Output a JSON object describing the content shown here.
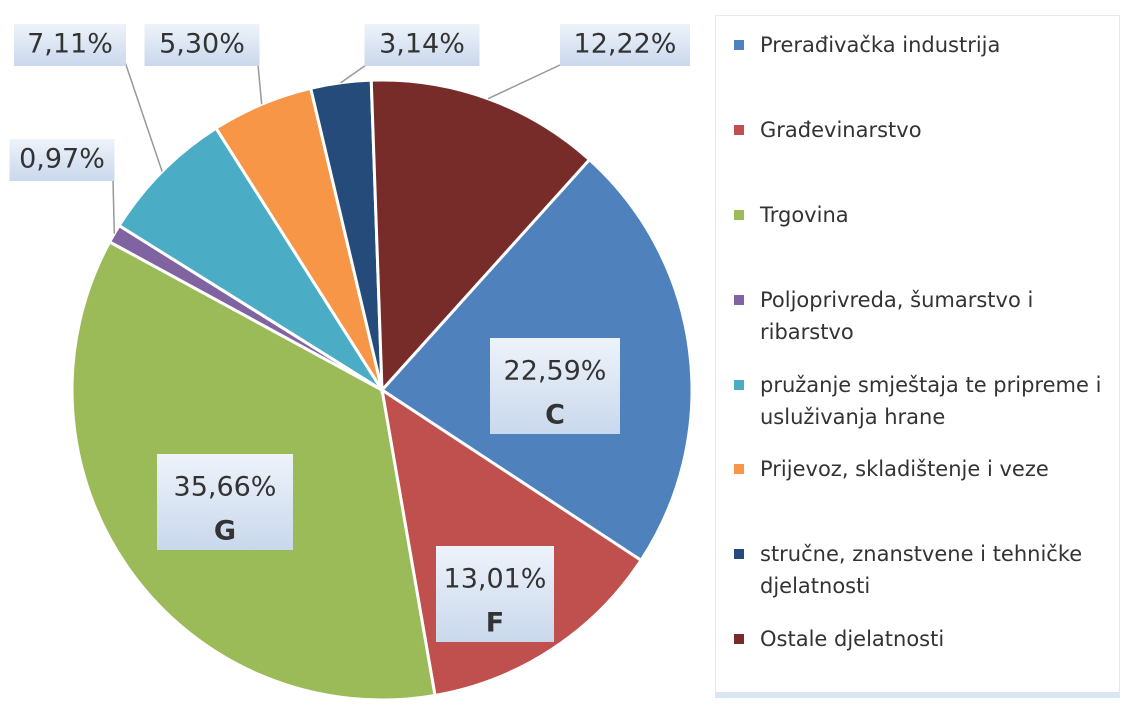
{
  "chart_data": {
    "type": "pie",
    "categories": [
      "Prerađivačka industrija",
      "Građevinarstvo",
      "Trgovina",
      "Poljoprivreda, šumarstvo i ribarstvo",
      "pružanje smještaja te pripreme i usluživanja hrane",
      "Prijevoz, skladištenje i veze",
      "stručne, znanstvene i tehničke djelatnosti",
      "Ostale djelatnosti"
    ],
    "values": [
      22.59,
      13.01,
      35.66,
      0.97,
      7.11,
      5.3,
      3.14,
      12.22
    ],
    "value_labels": [
      "22,59%",
      "13,01%",
      "35,66%",
      "0,97%",
      "7,11%",
      "5,30%",
      "3,14%",
      "12,22%"
    ],
    "slice_codes": [
      "C",
      "F",
      "G",
      null,
      null,
      null,
      null,
      null
    ],
    "colors": [
      "#4f81bd",
      "#c0504d",
      "#9bbb59",
      "#8064a2",
      "#4bacc6",
      "#f79646",
      "#254b7a",
      "#772c2a"
    ],
    "legend": "right"
  }
}
